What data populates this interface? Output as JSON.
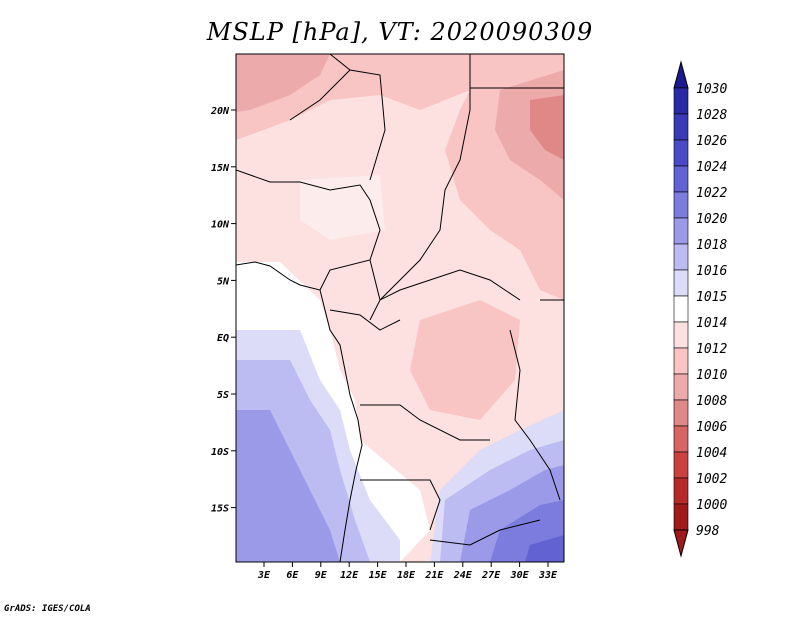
{
  "title": "MSLP [hPa], VT: 2020090309",
  "footer": "GrADS: IGES/COLA",
  "map": {
    "lat_labels": [
      "20N",
      "15N",
      "10N",
      "5N",
      "EQ",
      "5S",
      "10S",
      "15S"
    ],
    "lon_labels": [
      "3E",
      "6E",
      "9E",
      "12E",
      "15E",
      "18E",
      "21E",
      "24E",
      "27E",
      "30E",
      "33E"
    ]
  },
  "colorbar": {
    "levels": [
      "1030",
      "1028",
      "1026",
      "1024",
      "1022",
      "1020",
      "1018",
      "1016",
      "1015",
      "1014",
      "1012",
      "1010",
      "1008",
      "1006",
      "1004",
      "1002",
      "1000",
      "998"
    ],
    "colors": [
      "#1c1a8c",
      "#2a2aa6",
      "#3a3ab8",
      "#4a4ac6",
      "#6262d2",
      "#7c7cde",
      "#9a9ae8",
      "#bcbcf2",
      "#dcdcf8",
      "#ffffff",
      "#fde0e0",
      "#f8c4c4",
      "#ecaaaa",
      "#e08888",
      "#d86464",
      "#cc4040",
      "#b82a2a",
      "#a01a1a"
    ]
  }
}
